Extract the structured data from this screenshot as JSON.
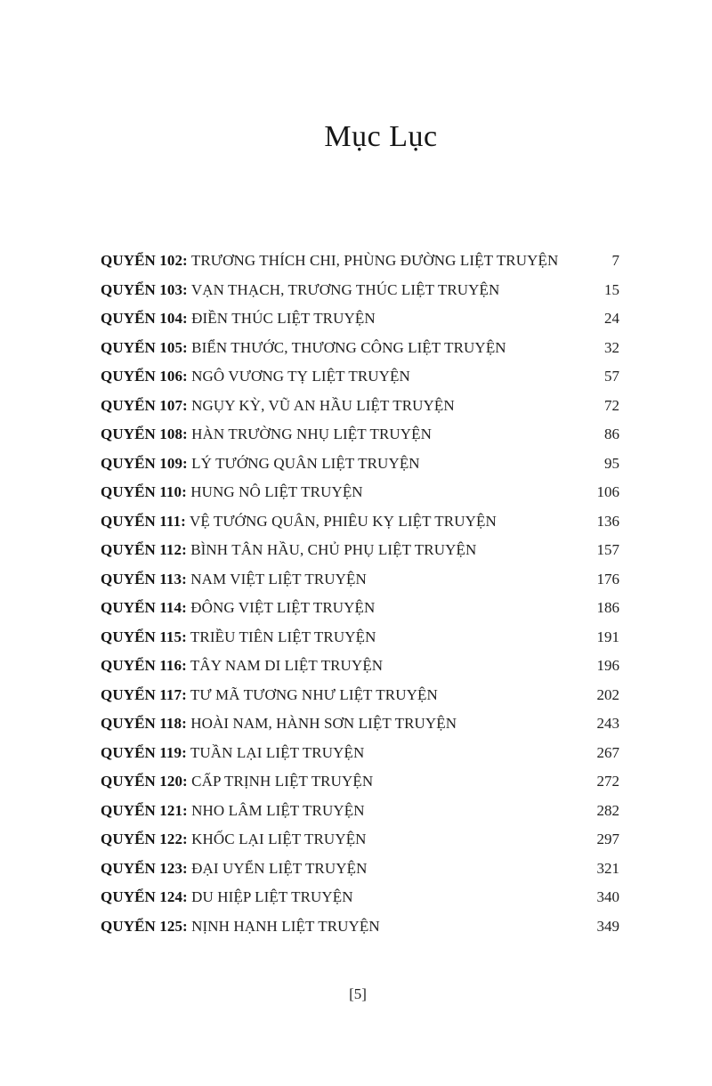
{
  "page": {
    "title": "Mục Lục",
    "footer_page_number": "[5]"
  },
  "toc": {
    "entries": [
      {
        "label": "QUYỂN 102:",
        "title": "TRƯƠNG THÍCH CHI, PHÙNG ĐƯỜNG LIỆT TRUYỆN",
        "page": "7"
      },
      {
        "label": "QUYỂN 103:",
        "title": "VẠN THẠCH, TRƯƠNG THÚC LIỆT TRUYỆN",
        "page": "15"
      },
      {
        "label": "QUYỂN 104:",
        "title": "ĐIỀN THÚC LIỆT TRUYỆN",
        "page": "24"
      },
      {
        "label": "QUYỂN 105:",
        "title": "BIỂN THƯỚC, THƯƠNG CÔNG LIỆT TRUYỆN",
        "page": "32"
      },
      {
        "label": "QUYỂN 106:",
        "title": "NGÔ VƯƠNG TỴ LIỆT TRUYỆN",
        "page": "57"
      },
      {
        "label": "QUYỂN 107:",
        "title": "NGỤY KỲ, VŨ AN HẦU LIỆT TRUYỆN",
        "page": "72"
      },
      {
        "label": "QUYỂN 108:",
        "title": "HÀN TRƯỜNG NHỤ LIỆT TRUYỆN",
        "page": "86"
      },
      {
        "label": "QUYỂN 109:",
        "title": "LÝ TƯỚNG QUÂN LIỆT TRUYỆN",
        "page": "95"
      },
      {
        "label": "QUYỂN 110:",
        "title": "HUNG NÔ LIỆT TRUYỆN",
        "page": "106"
      },
      {
        "label": "QUYỂN 111:",
        "title": "VỆ TƯỚNG QUÂN, PHIÊU KỴ LIỆT TRUYỆN",
        "page": "136"
      },
      {
        "label": "QUYỂN 112:",
        "title": "BÌNH TÂN HẦU, CHỦ PHỤ LIỆT TRUYỆN",
        "page": "157"
      },
      {
        "label": "QUYỂN 113:",
        "title": "NAM VIỆT LIỆT TRUYỆN",
        "page": "176"
      },
      {
        "label": "QUYỂN 114:",
        "title": "ĐÔNG VIỆT LIỆT TRUYỆN",
        "page": "186"
      },
      {
        "label": "QUYỂN 115:",
        "title": "TRIỀU TIÊN LIỆT TRUYỆN",
        "page": "191"
      },
      {
        "label": "QUYỂN 116:",
        "title": "TÂY NAM DI LIỆT TRUYỆN",
        "page": "196"
      },
      {
        "label": "QUYỂN 117:",
        "title": "TƯ MÃ TƯƠNG NHƯ LIỆT TRUYỆN",
        "page": "202"
      },
      {
        "label": "QUYỂN 118:",
        "title": "HOÀI NAM, HÀNH SƠN LIỆT TRUYỆN",
        "page": "243"
      },
      {
        "label": "QUYỂN 119:",
        "title": "TUẦN LẠI LIỆT TRUYỆN",
        "page": "267"
      },
      {
        "label": "QUYỂN 120:",
        "title": "CẤP TRỊNH LIỆT TRUYỆN",
        "page": "272"
      },
      {
        "label": "QUYỂN 121:",
        "title": "NHO LÂM LIỆT TRUYỆN",
        "page": "282"
      },
      {
        "label": "QUYỂN 122:",
        "title": "KHỐC LẠI LIỆT TRUYỆN",
        "page": "297"
      },
      {
        "label": "QUYỂN 123:",
        "title": "ĐẠI UYỂN LIỆT TRUYỆN",
        "page": "321"
      },
      {
        "label": "QUYỂN 124:",
        "title": "DU HIỆP LIỆT TRUYỆN",
        "page": "340"
      },
      {
        "label": "QUYỂN 125:",
        "title": "NỊNH HẠNH LIỆT TRUYỆN",
        "page": "349"
      }
    ]
  }
}
